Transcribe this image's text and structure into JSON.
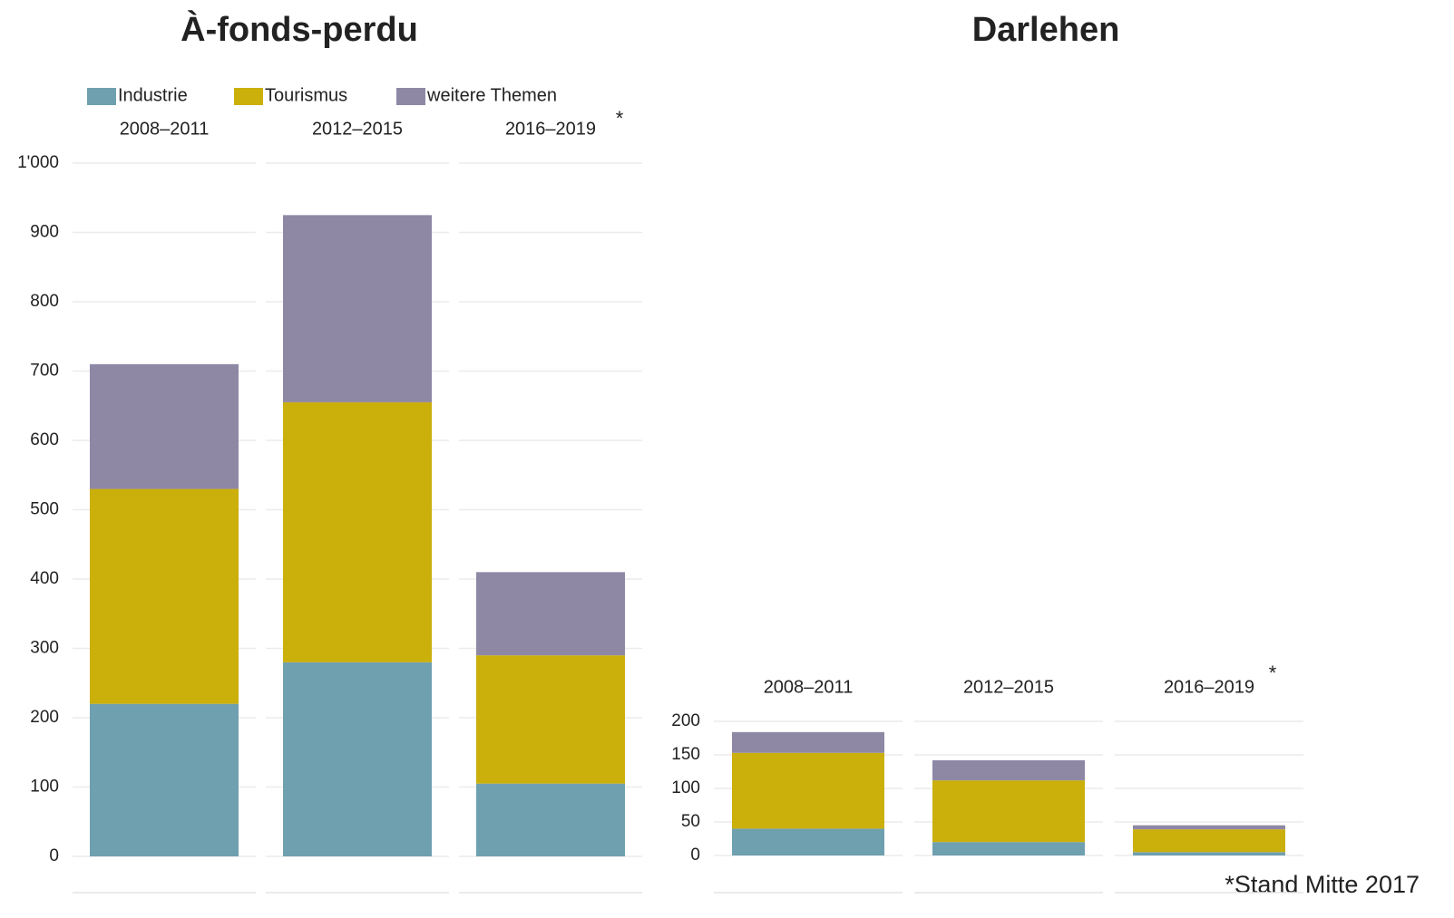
{
  "chart_data": [
    {
      "type": "bar",
      "stacked": true,
      "title": "À-fonds-perdu",
      "categories": [
        "2008–2011",
        "2012–2015",
        "2016–2019"
      ],
      "category_note": "*",
      "series": [
        {
          "name": "Industrie",
          "color": "#6fa0b0",
          "values": [
            220,
            280,
            105
          ]
        },
        {
          "name": "Tourismus",
          "color": "#cbaf0b",
          "values": [
            310,
            375,
            185
          ]
        },
        {
          "name": "weitere Themen",
          "color": "#8e88a5",
          "values": [
            180,
            270,
            120
          ]
        }
      ],
      "ylim": [
        0,
        1000
      ],
      "yticks": [
        0,
        100,
        200,
        300,
        400,
        500,
        600,
        700,
        800,
        900,
        {
          "value": 1000,
          "label": "1'000"
        }
      ],
      "grid": true,
      "legend": "top-left"
    },
    {
      "type": "bar",
      "stacked": true,
      "title": "Darlehen",
      "categories": [
        "2008–2011",
        "2012–2015",
        "2016–2019"
      ],
      "category_note": "*",
      "series": [
        {
          "color": "#6fa0b0",
          "values": [
            40,
            20,
            5
          ]
        },
        {
          "color": "#cbaf0b",
          "values": [
            113,
            92,
            34
          ]
        },
        {
          "color": "#8e88a5",
          "values": [
            31,
            30,
            6
          ]
        }
      ],
      "ylim": [
        0,
        200
      ],
      "yticks": [
        0,
        50,
        100,
        150,
        200
      ],
      "grid": true
    }
  ],
  "note": "*Stand Mitte 2017"
}
